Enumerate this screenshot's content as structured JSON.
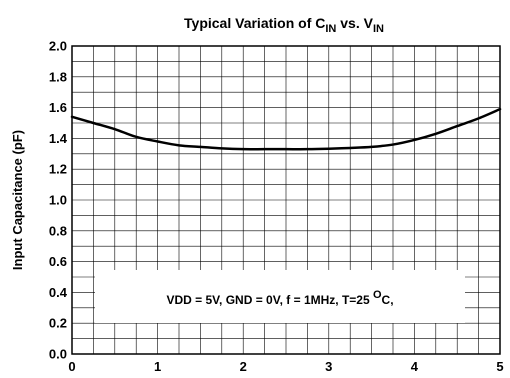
{
  "chart_data": {
    "type": "line",
    "title": {
      "prefix": "Typical Variation of C",
      "sub1": "IN",
      "middle": " vs. V",
      "sub2": "IN"
    },
    "xlabel": "",
    "ylabel": "Input Capacitance (pF)",
    "xlim": [
      0,
      5
    ],
    "ylim": [
      0,
      2.0
    ],
    "x_ticks": [
      "0",
      "1",
      "2",
      "3",
      "4",
      "5"
    ],
    "y_ticks": [
      "0.0",
      "0.2",
      "0.4",
      "0.6",
      "0.8",
      "1.0",
      "1.2",
      "1.4",
      "1.6",
      "1.8",
      "2.0"
    ],
    "grid": true,
    "grid_minor_x_step": 0.25,
    "grid_minor_y_step": 0.1,
    "series": [
      {
        "x": [
          0,
          0.25,
          0.5,
          0.75,
          1.0,
          1.25,
          1.5,
          1.75,
          2.0,
          2.25,
          2.5,
          2.75,
          3.0,
          3.25,
          3.5,
          3.75,
          4.0,
          4.25,
          4.5,
          4.75,
          5.0
        ],
        "y": [
          1.54,
          1.5,
          1.46,
          1.41,
          1.38,
          1.355,
          1.345,
          1.335,
          1.33,
          1.33,
          1.33,
          1.33,
          1.333,
          1.338,
          1.345,
          1.36,
          1.39,
          1.43,
          1.48,
          1.53,
          1.59
        ]
      }
    ],
    "annotation": {
      "main": "VDD = 5V, GND = 0V, f = 1MHz, T=25 ",
      "sup": "O",
      "tail": "C,"
    }
  }
}
